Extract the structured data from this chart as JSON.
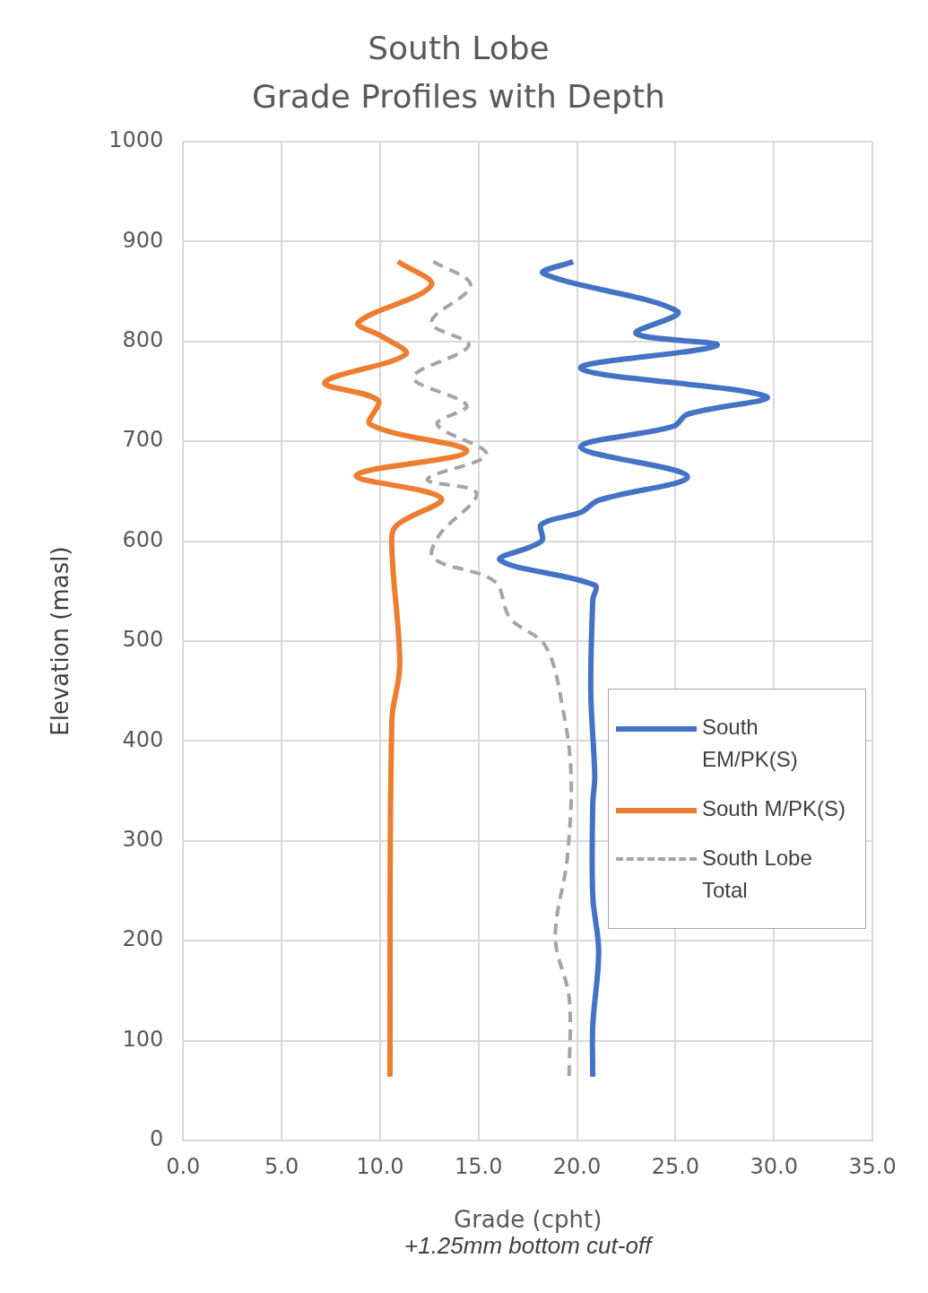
{
  "chart_data": {
    "type": "line",
    "title": "South Lobe\nGrade Profiles with Depth",
    "xlabel": "Grade (cpht)",
    "ylabel": "Elevation (masl)",
    "annotations": [
      "+1.25mm bottom cut-off"
    ],
    "xlim": [
      0,
      35
    ],
    "xticks": [
      {
        "value": 0,
        "label": "0.0"
      },
      {
        "value": 5,
        "label": "5.0"
      },
      {
        "value": 10,
        "label": "10.0"
      },
      {
        "value": 15,
        "label": "15.0"
      },
      {
        "value": 20,
        "label": "20.0"
      },
      {
        "value": 25,
        "label": "25.0"
      },
      {
        "value": 30,
        "label": "30.0"
      },
      {
        "value": 35,
        "label": "35.0"
      }
    ],
    "ylim": [
      0,
      1000
    ],
    "yticks": [
      0,
      100,
      200,
      300,
      400,
      500,
      600,
      700,
      800,
      900,
      1000
    ],
    "grid": true,
    "legend": "right",
    "marker": "none",
    "series": [
      {
        "name": "South EM/PK(S)",
        "color": "#4472c4",
        "line_style": "solid",
        "x": [
          19.8,
          18.3,
          25.1,
          23.0,
          27.1,
          20.2,
          29.6,
          25.6,
          24.9,
          20.2,
          25.6,
          21.1,
          20.2,
          18.2,
          18.2,
          16.1,
          20.9,
          20.8,
          20.7,
          20.9,
          20.8,
          20.8,
          21.1,
          20.8,
          20.8
        ],
        "values": [
          880,
          868,
          830,
          808,
          796,
          773,
          745,
          727,
          715,
          694,
          665,
          641,
          629,
          617,
          600,
          581,
          556,
          541,
          449,
          365,
          337,
          245,
          189,
          115,
          64
        ]
      },
      {
        "name": "South M/PK(S)",
        "color": "#ed7d31",
        "line_style": "solid",
        "x": [
          10.9,
          12.6,
          8.9,
          10.1,
          11.3,
          7.2,
          9.9,
          9.5,
          14.4,
          8.8,
          13.1,
          10.8,
          10.6,
          11.0,
          10.6,
          10.5
        ],
        "values": [
          880,
          856,
          819,
          805,
          787,
          759,
          741,
          717,
          690,
          666,
          643,
          615,
          592,
          476,
          421,
          64
        ]
      },
      {
        "name": "South Lobe Total",
        "color": "#a5a5a5",
        "line_style": "dashed",
        "x": [
          12.7,
          14.6,
          12.6,
          14.5,
          11.7,
          14.4,
          12.9,
          15.4,
          12.4,
          14.9,
          13.0,
          12.7,
          15.8,
          16.6,
          18.4,
          19.3,
          19.7,
          19.5,
          18.9,
          19.6,
          19.6
        ],
        "values": [
          880,
          856,
          819,
          796,
          764,
          736,
          717,
          687,
          662,
          648,
          606,
          583,
          560,
          523,
          495,
          430,
          365,
          282,
          203,
          143,
          64
        ]
      }
    ]
  }
}
